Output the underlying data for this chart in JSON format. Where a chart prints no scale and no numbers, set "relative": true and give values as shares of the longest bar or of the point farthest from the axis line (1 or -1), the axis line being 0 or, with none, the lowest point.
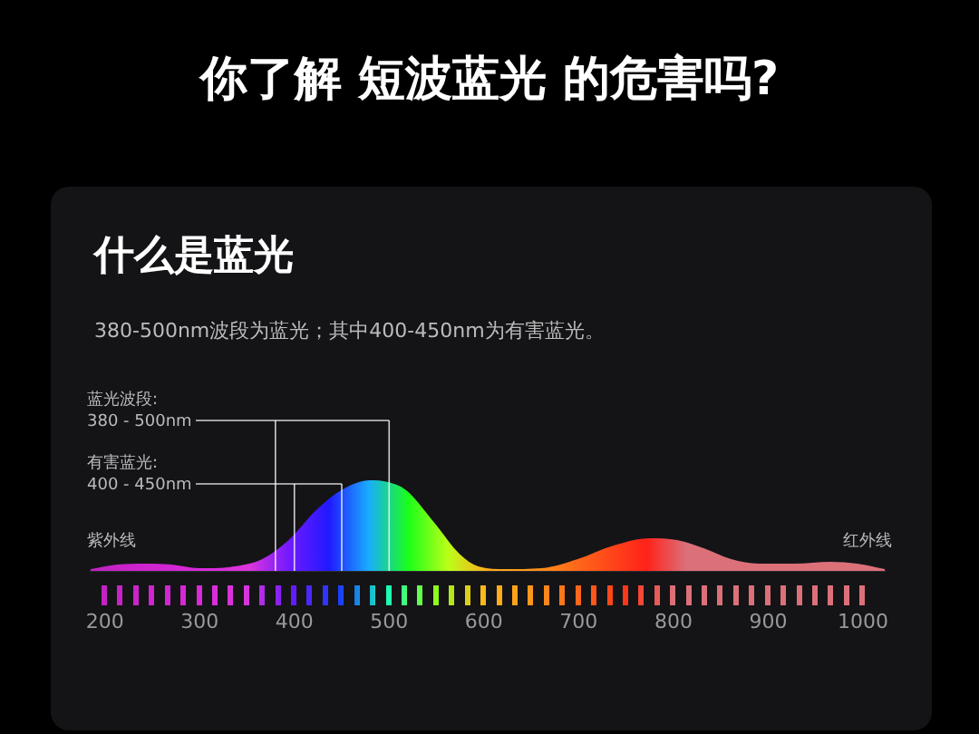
{
  "chart_data": {
    "type": "area",
    "title": "你了解 短波蓝光 的危害吗?",
    "subtitle": "什么是蓝光",
    "relative": true,
    "x": [
      185,
      213,
      242,
      270,
      299,
      337,
      366,
      394,
      423,
      451,
      480,
      499,
      518,
      547,
      575,
      594,
      623,
      661,
      699,
      737,
      775,
      804,
      832,
      861,
      890,
      928,
      966,
      994,
      1023
    ],
    "series": [
      {
        "values": [
          0.02,
          0.07,
          0.08,
          0.07,
          0.03,
          0.05,
          0.13,
          0.34,
          0.67,
          0.9,
          1.0,
          0.98,
          0.89,
          0.54,
          0.18,
          0.05,
          0.02,
          0.03,
          0.13,
          0.28,
          0.36,
          0.34,
          0.25,
          0.13,
          0.08,
          0.08,
          0.1,
          0.08,
          0.02
        ]
      }
    ],
    "xlim": [
      185,
      1023
    ],
    "xticks": [
      200,
      300,
      400,
      500,
      600,
      700,
      800,
      900,
      1000
    ],
    "ref_lines": [
      {
        "axis": "x",
        "value": 380
      },
      {
        "axis": "x",
        "value": 500
      },
      {
        "axis": "x",
        "value": 400
      },
      {
        "axis": "x",
        "value": 450
      }
    ],
    "annotations": [
      "380-500nm波段为蓝光；其中400-450nm为有害蓝光。",
      "紫外线",
      "红外线",
      "蓝光波段:\n380 - 500nm",
      "有害蓝光:\n400 - 450nm"
    ],
    "legend": false
  }
}
